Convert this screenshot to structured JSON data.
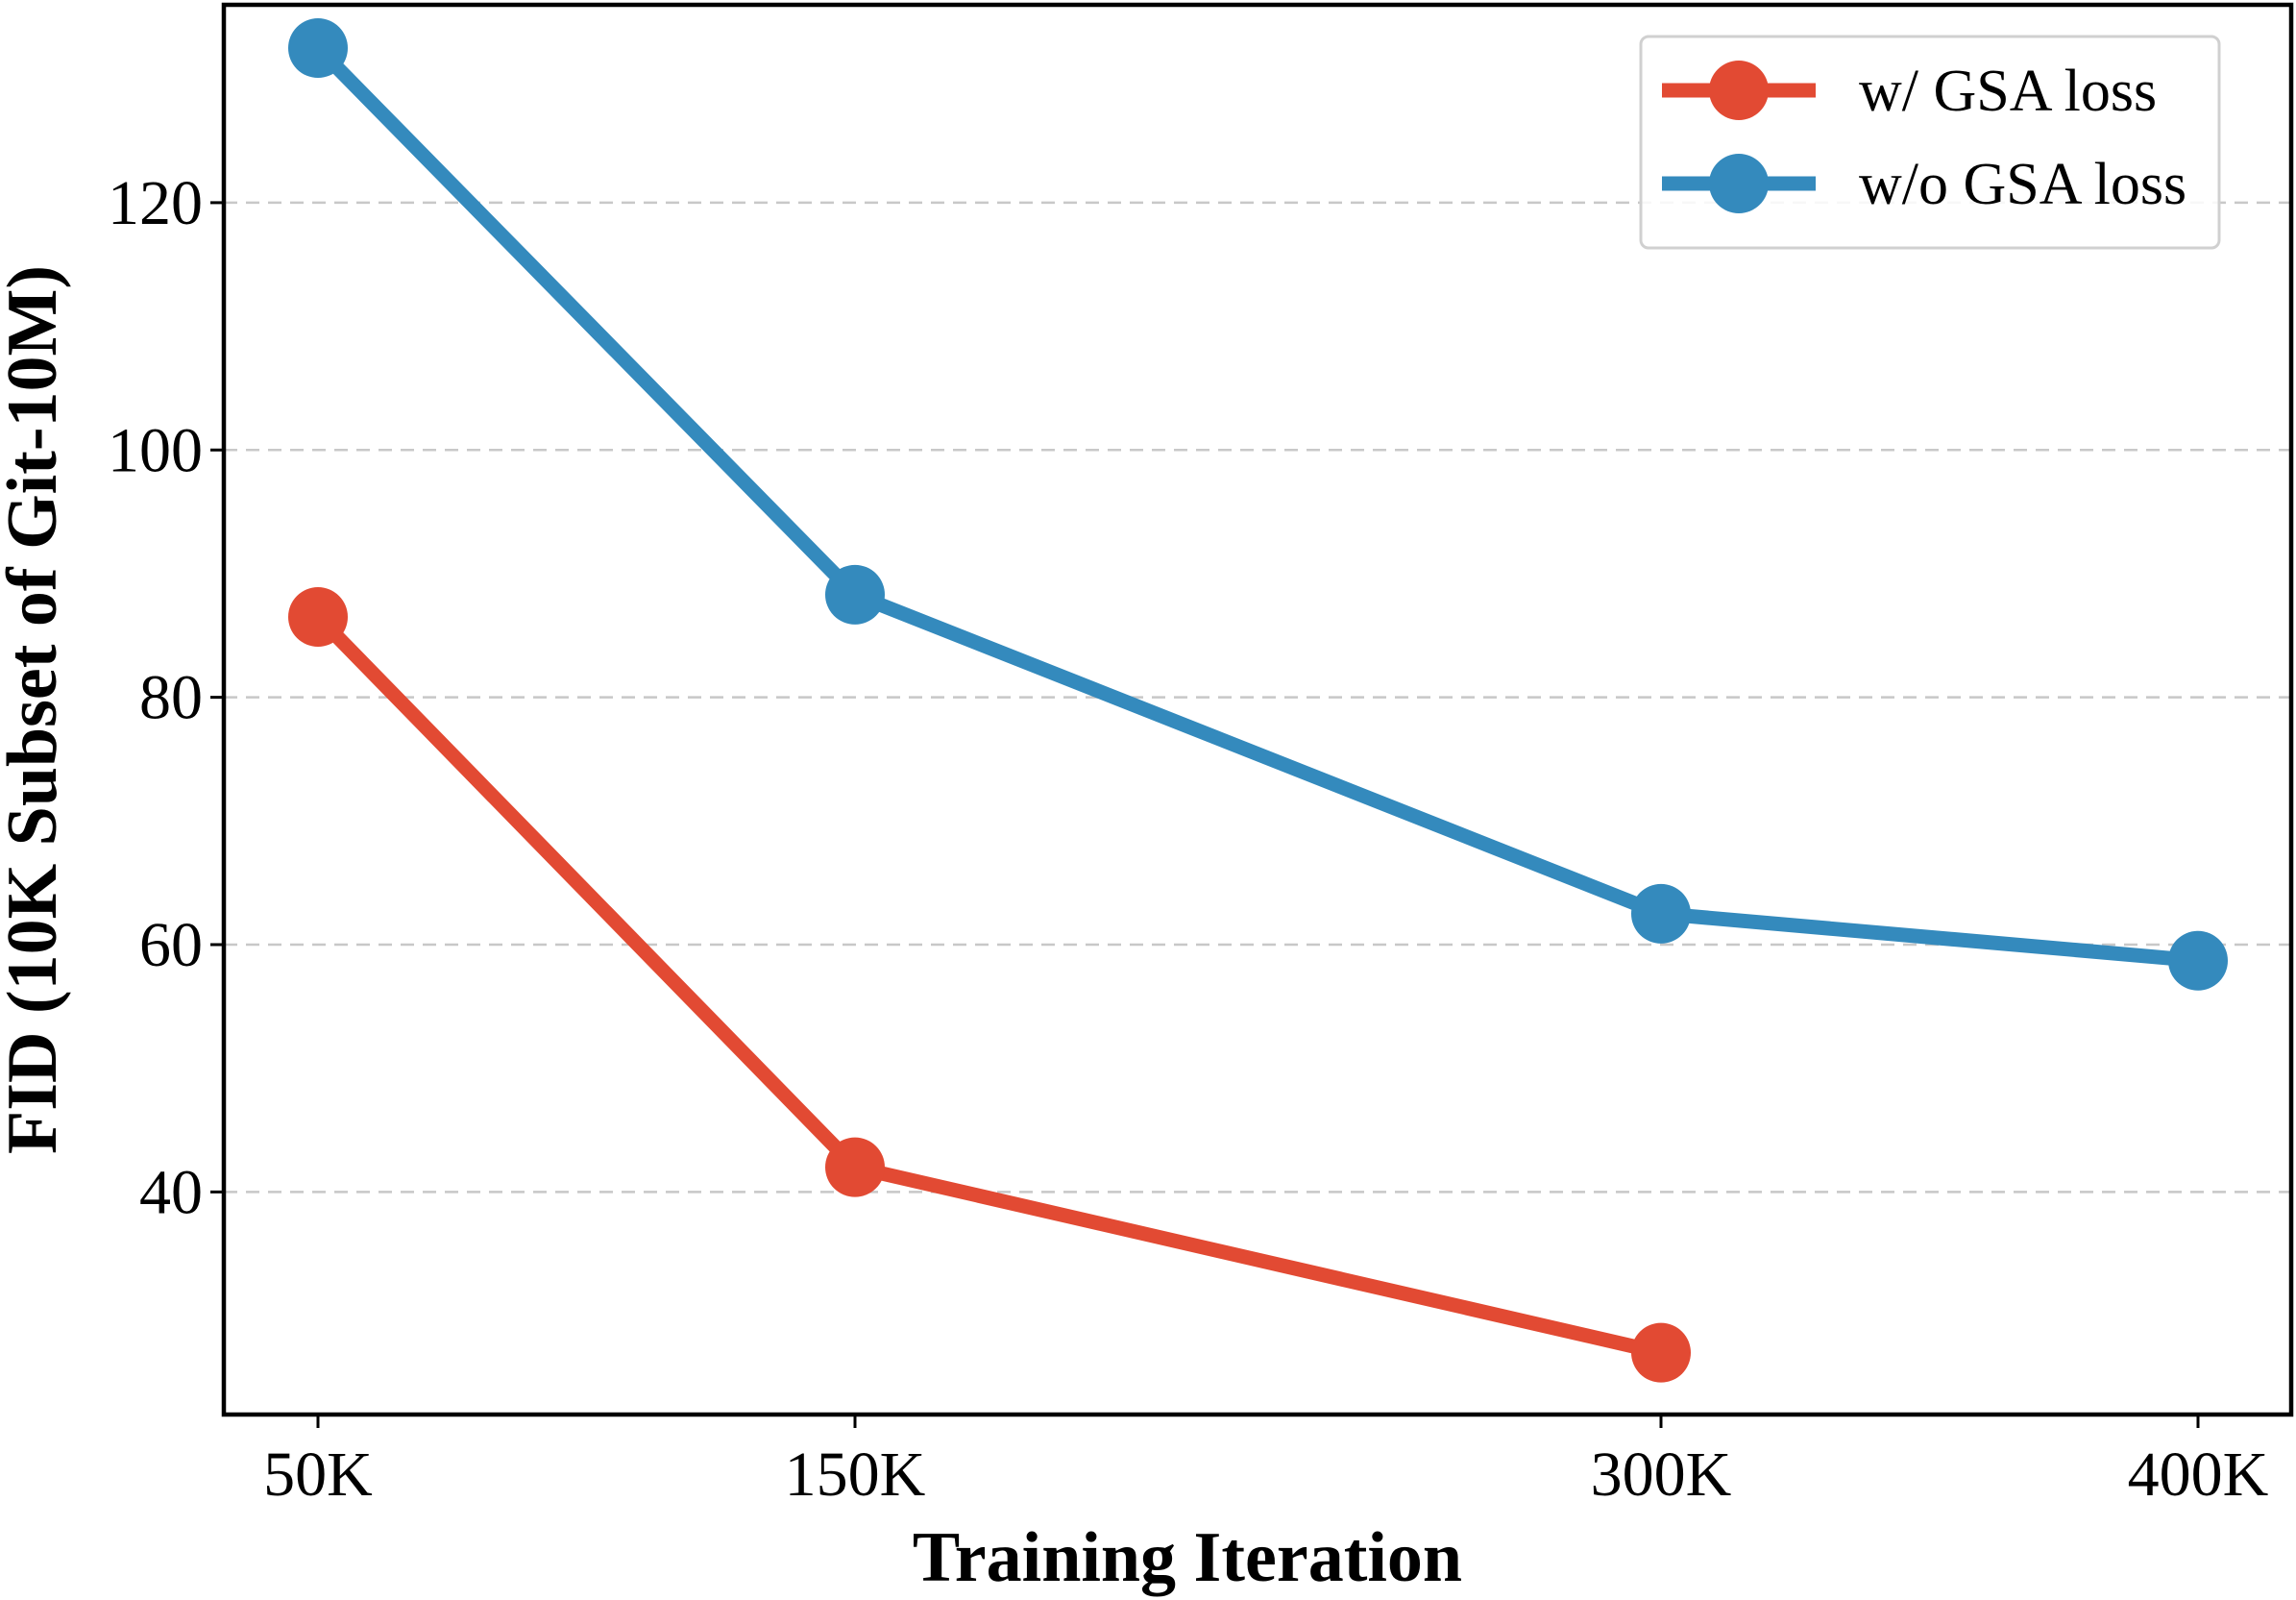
{
  "chart_data": {
    "type": "line",
    "categories": [
      "50K",
      "150K",
      "300K",
      "400K"
    ],
    "xlabel": "Training Iteration",
    "ylabel": "FID (10K Subset of Git-10M)",
    "ylim": [
      22,
      136
    ],
    "yticks": [
      40,
      60,
      80,
      100,
      120
    ],
    "grid": "horizontal dashed",
    "legend": "top-right",
    "series": [
      {
        "name": "w/ GSA loss",
        "color": "#e24a33",
        "values": [
          86.5,
          42,
          27,
          null
        ]
      },
      {
        "name": "w/o GSA loss",
        "color": "#348abd",
        "values": [
          132.5,
          88.3,
          62.5,
          58.7
        ]
      }
    ]
  }
}
